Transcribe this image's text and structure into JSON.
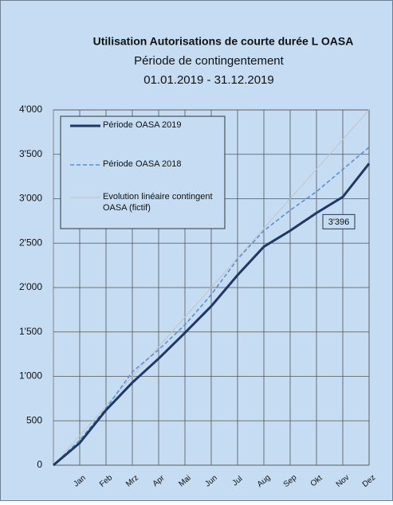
{
  "chart_data": {
    "type": "line",
    "title": "Utilisation Autorisations de courte durée L OASA",
    "subtitle": [
      "Période de contingentement",
      "01.01.2019 - 31.12.2019"
    ],
    "categories": [
      null,
      "Jan",
      "Feb",
      "Mrz",
      "Apr",
      "Mai",
      "Jun",
      "Jul",
      "Aug",
      "Sep",
      "Okt",
      "Nov",
      "Dez"
    ],
    "series": [
      {
        "name": "Période OASA 2019",
        "color": "#1f3864",
        "dash": false,
        "values": [
          0,
          250,
          620,
          930,
          1200,
          1490,
          1790,
          2140,
          2460,
          2640,
          2840,
          3020,
          3396
        ],
        "value_labels": [
          null,
          null,
          null,
          null,
          null,
          null,
          null,
          null,
          null,
          null,
          null,
          null,
          "3'396"
        ]
      },
      {
        "name": "Période OASA 2018",
        "color": "#5b8fd4",
        "dash": true,
        "values": [
          0,
          280,
          640,
          1050,
          1300,
          1580,
          1920,
          2320,
          2640,
          2870,
          3080,
          3330,
          3580
        ]
      },
      {
        "name": "Evolution linéaire contingent OASA (fictif)",
        "color": "#c4c4c4",
        "dash": false,
        "values": [
          0,
          333,
          667,
          1000,
          1333,
          1667,
          2000,
          2333,
          2667,
          3000,
          3333,
          3667,
          4000
        ]
      }
    ],
    "ylim": [
      0,
      4000
    ],
    "yticks": [
      0,
      500,
      {
        "value": 1000,
        "label": "1'000"
      },
      {
        "value": 1500,
        "label": "1'500"
      },
      {
        "value": 2000,
        "label": "2'000"
      },
      {
        "value": 2500,
        "label": "2'500"
      },
      {
        "value": 3000,
        "label": "3'000"
      },
      {
        "value": 3500,
        "label": "3'500"
      },
      {
        "value": 4000,
        "label": "4'000"
      }
    ],
    "grid": true,
    "legend": "top-left"
  }
}
